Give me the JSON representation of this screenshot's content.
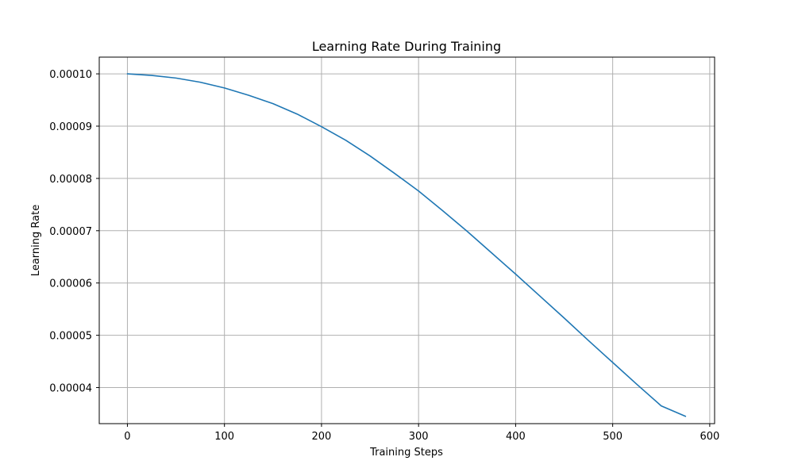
{
  "chart_data": {
    "type": "line",
    "title": "Learning Rate During Training",
    "xlabel": "Training Steps",
    "ylabel": "Learning Rate",
    "xlim": [
      -29,
      605
    ],
    "ylim": [
      3.31e-05,
      0.0001032
    ],
    "x_ticks": [
      {
        "value": 0,
        "label": "0"
      },
      {
        "value": 100,
        "label": "100"
      },
      {
        "value": 200,
        "label": "200"
      },
      {
        "value": 300,
        "label": "300"
      },
      {
        "value": 400,
        "label": "400"
      },
      {
        "value": 500,
        "label": "500"
      },
      {
        "value": 600,
        "label": "600"
      }
    ],
    "y_ticks": [
      {
        "value": 4e-05,
        "label": "0.00004"
      },
      {
        "value": 5e-05,
        "label": "0.00005"
      },
      {
        "value": 6e-05,
        "label": "0.00006"
      },
      {
        "value": 7e-05,
        "label": "0.00007"
      },
      {
        "value": 8e-05,
        "label": "0.00008"
      },
      {
        "value": 9e-05,
        "label": "0.00009"
      },
      {
        "value": 0.0001,
        "label": "0.00010"
      }
    ],
    "grid": true,
    "series": [
      {
        "color": "#1f77b4",
        "x": [
          0,
          25,
          50,
          75,
          100,
          125,
          150,
          175,
          200,
          225,
          250,
          275,
          300,
          325,
          350,
          375,
          400,
          425,
          450,
          475,
          500,
          525,
          550,
          575
        ],
        "y": [
          0.0001,
          9.97e-05,
          9.92e-05,
          9.84e-05,
          9.73e-05,
          9.59e-05,
          9.43e-05,
          9.23e-05,
          8.99e-05,
          8.73e-05,
          8.43e-05,
          8.1e-05,
          7.76e-05,
          7.38e-05,
          6.99e-05,
          6.58e-05,
          6.17e-05,
          5.75e-05,
          5.33e-05,
          4.9e-05,
          4.48e-05,
          4.06e-05,
          3.65e-05,
          3.45e-05
        ]
      }
    ]
  }
}
